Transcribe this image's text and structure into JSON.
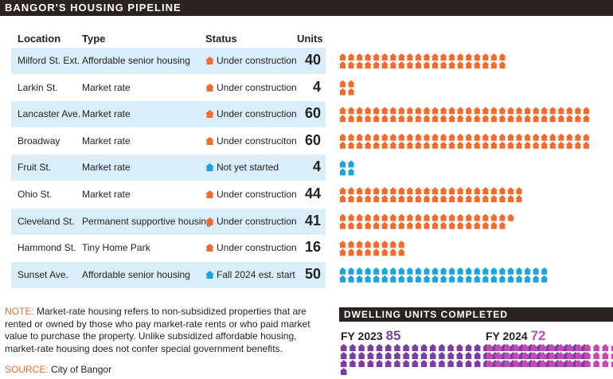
{
  "title": "BANGOR'S HOUSING PIPELINE",
  "headers": {
    "location": "Location",
    "type": "Type",
    "status": "Status",
    "units": "Units"
  },
  "colors": {
    "construction": "#f26b2d",
    "planned": "#1aa3dc",
    "fy2023": "#7a3fa0",
    "fy2024": "#c24ab2",
    "row_shade": "#d9eef8",
    "dark_bar": "#2b2320"
  },
  "chart_data": {
    "type": "table",
    "title": "BANGOR'S HOUSING PIPELINE",
    "icon": "house-icon",
    "rows": [
      {
        "location": "Milford St. Ext.",
        "type": "Affordable senior housing",
        "status": "Under construction",
        "state": "construction",
        "units": 40
      },
      {
        "location": "Larkin St.",
        "type": "Market rate",
        "status": "Under construction",
        "state": "construction",
        "units": 4
      },
      {
        "location": "Lancaster Ave.",
        "type": "Market rate",
        "status": "Under construction",
        "state": "construction",
        "units": 60
      },
      {
        "location": "Broadway",
        "type": "Market rate",
        "status": "Under construcitоn",
        "state": "construction",
        "units": 60
      },
      {
        "location": "Fruit St.",
        "type": "Market rate",
        "status": "Not yet started",
        "state": "planned",
        "units": 4
      },
      {
        "location": "Ohio St.",
        "type": "Market rate",
        "status": "Under construction",
        "state": "construction",
        "units": 44
      },
      {
        "location": "Cleveland St.",
        "type": "Permanent supportive housing",
        "status": "Under construction",
        "state": "construction",
        "units": 41
      },
      {
        "location": "Hammond St.",
        "type": "Tiny Home Park",
        "status": "Under construction",
        "state": "construction",
        "units": 16
      },
      {
        "location": "Sunset Ave.",
        "type": "Affordable senior housing",
        "status": "Fall 2024 est. start",
        "state": "planned",
        "units": 50
      }
    ],
    "completed": {
      "title": "DWELLING UNITS COMPLETED",
      "years": [
        {
          "label": "FY 2023",
          "value": 85
        },
        {
          "label": "FY 2024",
          "value": 72
        }
      ]
    }
  },
  "note": {
    "label": "NOTE:",
    "text": " Market-rate housing refers to non-subsidized properties that are rented or owned by those who pay market-rate rents or who paid market value to purchase the property. Unlike subsidized affordable housing, market-rate housing does not confer special government benefits."
  },
  "source": {
    "label": "SOURCE:",
    "text": " City of Bangor"
  }
}
